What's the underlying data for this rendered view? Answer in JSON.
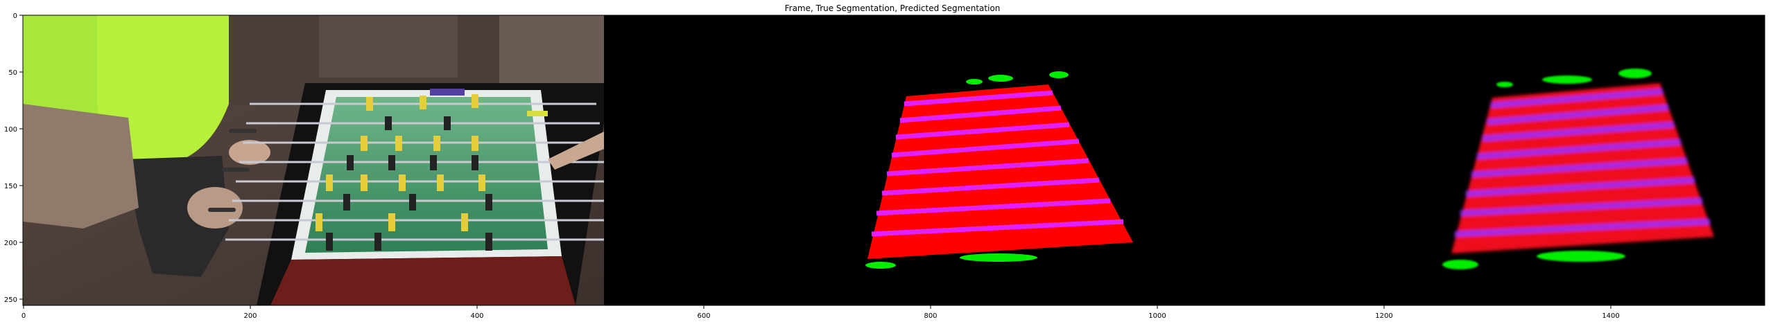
{
  "figure": {
    "title": "Frame, True Segmentation, Predicted Segmentation",
    "x_ticks": [
      "0",
      "200",
      "400",
      "600",
      "800",
      "1000",
      "1200",
      "1400"
    ],
    "y_ticks": [
      "0",
      "50",
      "100",
      "150",
      "200",
      "250"
    ]
  },
  "panels": {
    "frame": "foosball table photograph",
    "true_segmentation": "red table mask with magenta rod stripes and green side markers",
    "predicted_segmentation": "blurred red table mask with magenta rod stripes and green side markers"
  },
  "colors": {
    "table_mask": "#ff0000",
    "rod_stripe": "#e020ff",
    "marker": "#00ee00",
    "background": "#000000"
  }
}
